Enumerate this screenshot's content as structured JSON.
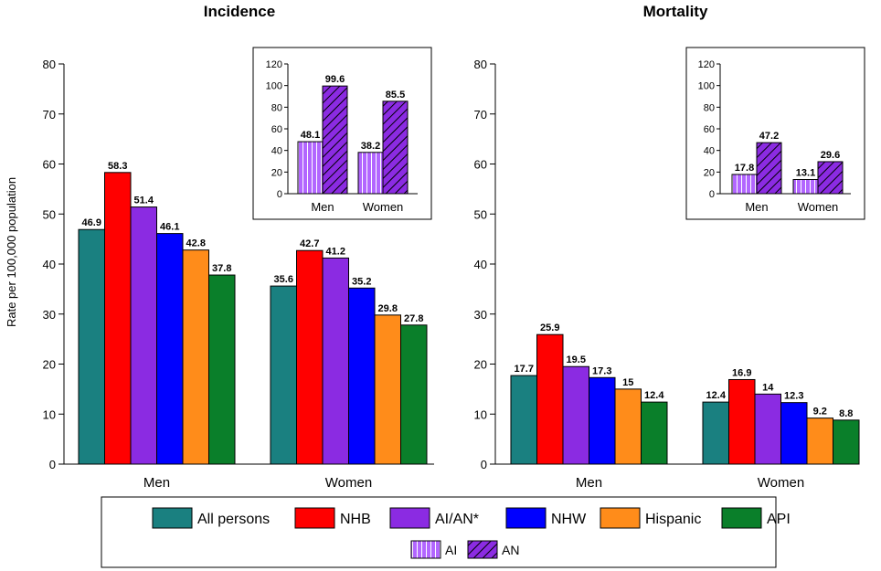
{
  "colors": {
    "All persons": "#1a8080",
    "NHB": "#ff0000",
    "AI/AN*": "#8b2be2",
    "NHW": "#0000ff",
    "Hispanic": "#ff8c1a",
    "API": "#0a7f2a",
    "AI": "#b266ff",
    "AN": "#8b2be2"
  },
  "legend": {
    "main": [
      "All persons",
      "NHB",
      "AI/AN*",
      "NHW",
      "Hispanic",
      "API"
    ],
    "inset": [
      "AI",
      "AN"
    ]
  },
  "chart_data": [
    {
      "type": "bar",
      "title": "Incidence",
      "ylabel": "Rate per 100,000 population",
      "ylim": [
        0,
        80
      ],
      "yticks": [
        0,
        10,
        20,
        30,
        40,
        50,
        60,
        70,
        80
      ],
      "categories": [
        "Men",
        "Women"
      ],
      "series": [
        {
          "name": "All persons",
          "values": [
            46.9,
            35.6
          ],
          "labels": [
            "46.9",
            "35.6"
          ]
        },
        {
          "name": "NHB",
          "values": [
            58.3,
            42.7
          ],
          "labels": [
            "58.3",
            "42.7"
          ]
        },
        {
          "name": "AI/AN*",
          "values": [
            51.4,
            41.2
          ],
          "labels": [
            "51.4",
            "41.2"
          ]
        },
        {
          "name": "NHW",
          "values": [
            46.1,
            35.2
          ],
          "labels": [
            "46.1",
            "35.2"
          ]
        },
        {
          "name": "Hispanic",
          "values": [
            42.8,
            29.8
          ],
          "labels": [
            "42.8",
            "29.8"
          ]
        },
        {
          "name": "API",
          "values": [
            37.8,
            27.8
          ],
          "labels": [
            "37.8",
            "27.8"
          ]
        }
      ],
      "inset": {
        "type": "bar",
        "ylim": [
          0,
          120
        ],
        "yticks": [
          0,
          20,
          40,
          60,
          80,
          100,
          120
        ],
        "categories": [
          "Men",
          "Women"
        ],
        "series": [
          {
            "name": "AI",
            "values": [
              48.1,
              38.2
            ],
            "labels": [
              "48.1",
              "38.2"
            ]
          },
          {
            "name": "AN",
            "values": [
              99.6,
              85.5
            ],
            "labels": [
              "99.6",
              "85.5"
            ]
          }
        ]
      }
    },
    {
      "type": "bar",
      "title": "Mortality",
      "ylim": [
        0,
        80
      ],
      "yticks": [
        0,
        10,
        20,
        30,
        40,
        50,
        60,
        70,
        80
      ],
      "categories": [
        "Men",
        "Women"
      ],
      "series": [
        {
          "name": "All persons",
          "values": [
            17.7,
            12.4
          ],
          "labels": [
            "17.7",
            "12.4"
          ]
        },
        {
          "name": "NHB",
          "values": [
            25.9,
            16.9
          ],
          "labels": [
            "25.9",
            "16.9"
          ]
        },
        {
          "name": "AI/AN*",
          "values": [
            19.5,
            14
          ],
          "labels": [
            "19.5",
            "14"
          ]
        },
        {
          "name": "NHW",
          "values": [
            17.3,
            12.3
          ],
          "labels": [
            "17.3",
            "12.3"
          ]
        },
        {
          "name": "Hispanic",
          "values": [
            15,
            9.2
          ],
          "labels": [
            "15",
            "9.2"
          ]
        },
        {
          "name": "API",
          "values": [
            12.4,
            8.8
          ],
          "labels": [
            "12.4",
            "8.8"
          ]
        }
      ],
      "inset": {
        "type": "bar",
        "ylim": [
          0,
          120
        ],
        "yticks": [
          0,
          20,
          40,
          60,
          80,
          100,
          120
        ],
        "categories": [
          "Men",
          "Women"
        ],
        "series": [
          {
            "name": "AI",
            "values": [
              17.8,
              13.1
            ],
            "labels": [
              "17.8",
              "13.1"
            ]
          },
          {
            "name": "AN",
            "values": [
              47.2,
              29.6
            ],
            "labels": [
              "47.2",
              "29.6"
            ]
          }
        ]
      }
    }
  ]
}
